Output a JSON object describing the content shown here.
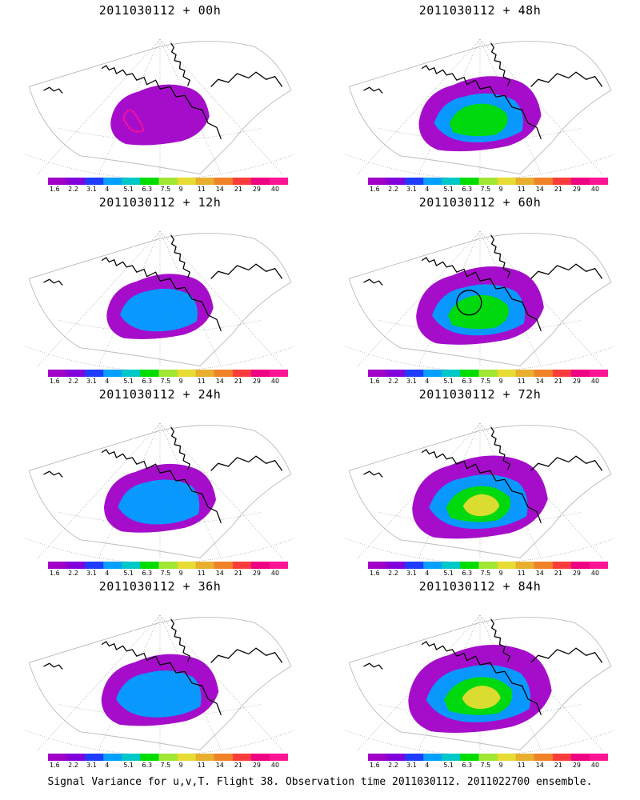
{
  "panels": [
    {
      "title": "2011030112 + 00h",
      "lead_hours": 0,
      "intensity": 0.0,
      "circle_marker": false,
      "red_contour": true
    },
    {
      "title": "2011030112 + 48h",
      "lead_hours": 48,
      "intensity": 0.45,
      "circle_marker": false,
      "red_contour": false
    },
    {
      "title": "2011030112 + 12h",
      "lead_hours": 12,
      "intensity": 0.15,
      "circle_marker": false,
      "red_contour": false
    },
    {
      "title": "2011030112 + 60h",
      "lead_hours": 60,
      "intensity": 0.55,
      "circle_marker": true,
      "red_contour": false
    },
    {
      "title": "2011030112 + 24h",
      "lead_hours": 24,
      "intensity": 0.25,
      "circle_marker": false,
      "red_contour": false
    },
    {
      "title": "2011030112 + 72h",
      "lead_hours": 72,
      "intensity": 0.7,
      "circle_marker": false,
      "red_contour": false
    },
    {
      "title": "2011030112 + 36h",
      "lead_hours": 36,
      "intensity": 0.35,
      "circle_marker": false,
      "red_contour": false
    },
    {
      "title": "2011030112 + 84h",
      "lead_hours": 84,
      "intensity": 0.85,
      "circle_marker": false,
      "red_contour": false
    }
  ],
  "colorbar": {
    "labels": [
      "1.6",
      "2.2",
      "3.1",
      "4",
      "5.1",
      "6.3",
      "7.5",
      "9",
      "11",
      "14",
      "21",
      "29",
      "40"
    ],
    "colors": [
      "#a000c8",
      "#8200dc",
      "#1e3cff",
      "#00a0ff",
      "#00c8c8",
      "#00dc00",
      "#a0e632",
      "#e6dc32",
      "#e6af2d",
      "#f08228",
      "#fa3c3c",
      "#f00082",
      "#ff1493"
    ]
  },
  "footer": "Signal Variance for u,v,T. Flight 38. Observation time 2011030112. 2011022700 ensemble."
}
